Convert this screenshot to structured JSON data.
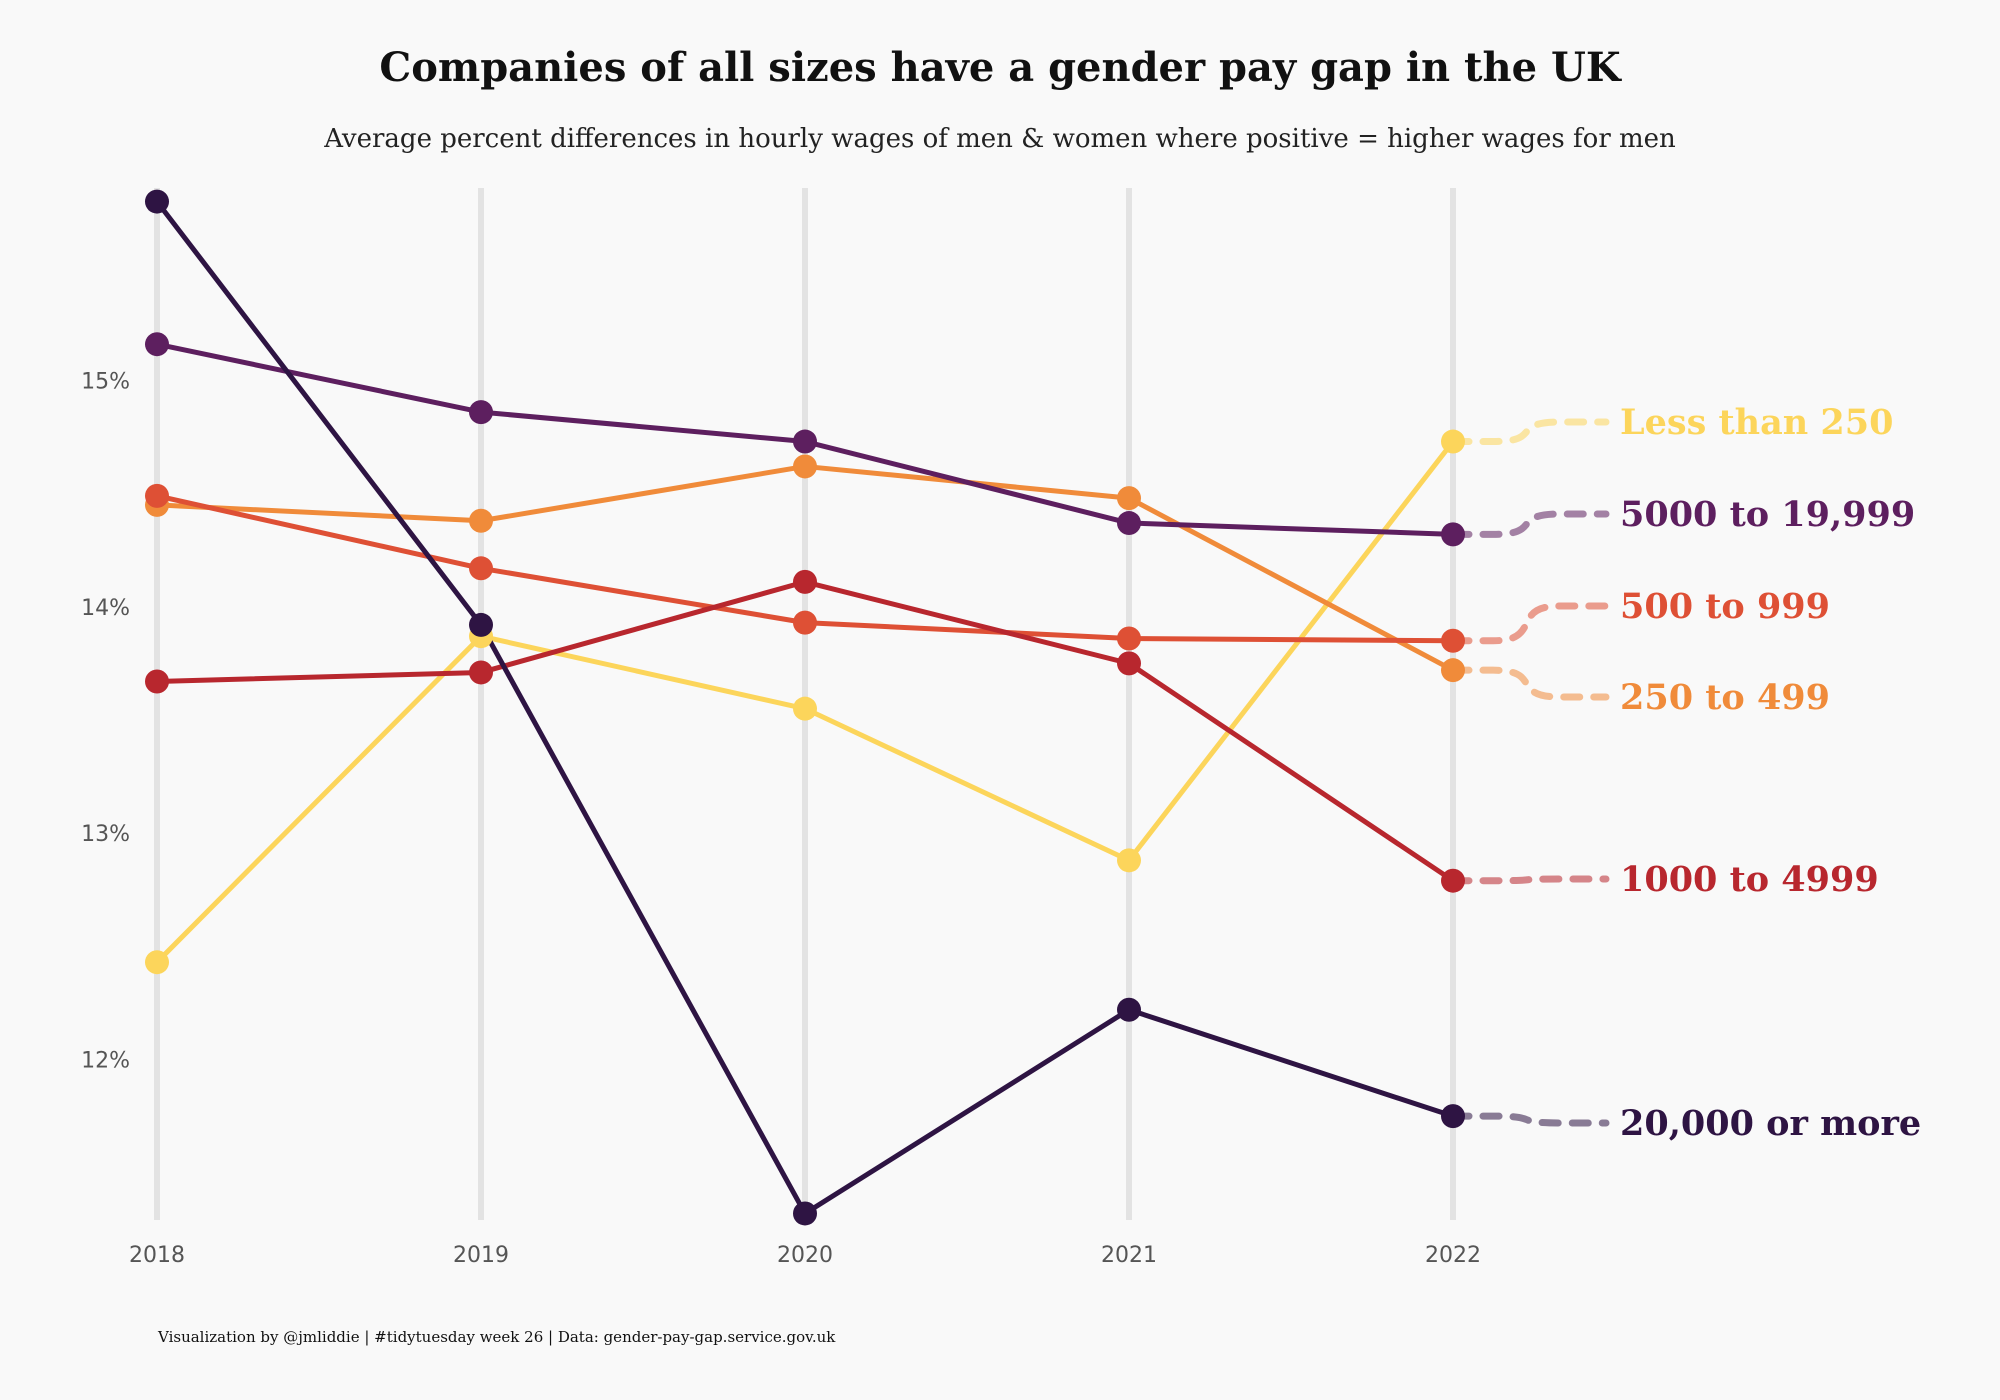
{
  "title": "Companies of all sizes have a gender pay gap in the UK",
  "subtitle": "Average percent differences in hourly wages of men & women where positive = higher wages for men",
  "caption": "Visualization by @jmliddie | #tidytuesday week 26 | Data: gender-pay-gap.service.gov.uk",
  "chart_data": {
    "type": "line",
    "x": [
      2018,
      2019,
      2020,
      2021,
      2022
    ],
    "x_tick_labels": [
      "2018",
      "2019",
      "2020",
      "2021",
      "2022"
    ],
    "y_ticks": [
      12,
      13,
      14,
      15
    ],
    "y_tick_labels": [
      "12%",
      "13%",
      "14%",
      "15%"
    ],
    "ylim": [
      11.3,
      15.85
    ],
    "grid": "vertical lines at each year",
    "legend": "direct labels at right end of lines",
    "series": [
      {
        "name": "Less than 250",
        "color": "#FCD55B",
        "values": [
          12.43,
          13.87,
          13.55,
          12.88,
          14.73
        ]
      },
      {
        "name": "250 to 499",
        "color": "#F08B3A",
        "values": [
          14.45,
          14.38,
          14.62,
          14.48,
          13.72
        ]
      },
      {
        "name": "500 to 999",
        "color": "#DE5035",
        "values": [
          14.49,
          14.17,
          13.93,
          13.86,
          13.85
        ]
      },
      {
        "name": "1000 to 4999",
        "color": "#B8272E",
        "values": [
          13.67,
          13.71,
          14.11,
          13.75,
          12.79
        ]
      },
      {
        "name": "5000 to 19,999",
        "color": "#5D1F5F",
        "values": [
          15.16,
          14.86,
          14.73,
          14.37,
          14.32
        ]
      },
      {
        "name": "20,000 or more",
        "color": "#2E1443",
        "values": [
          15.79,
          13.92,
          11.32,
          12.22,
          11.75
        ]
      }
    ]
  }
}
